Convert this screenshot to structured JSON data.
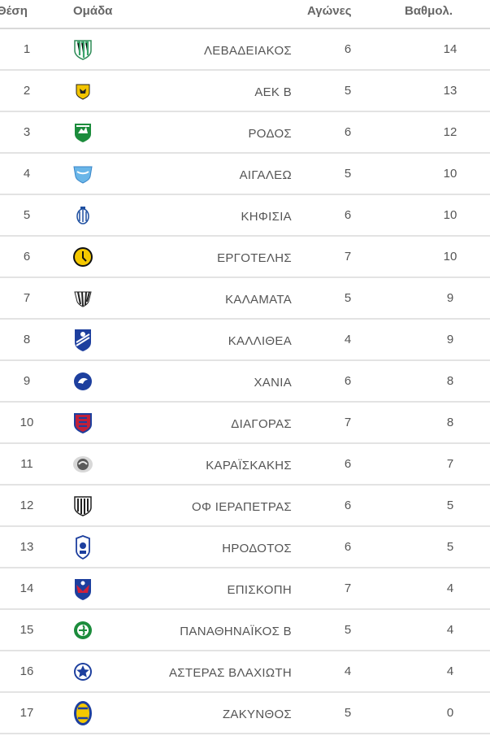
{
  "headers": {
    "position": "Θέση",
    "team": "Ομάδα",
    "games": "Αγώνες",
    "points": "Βαθμολ."
  },
  "rows": [
    {
      "position": "1",
      "team": "ΛΕΒΑΔΕΙΑΚΟΣ",
      "games": "6",
      "points": "14",
      "logo": "levadiakos-crest-icon"
    },
    {
      "position": "2",
      "team": "ΑΕΚ Β",
      "games": "5",
      "points": "13",
      "logo": "aek-crest-icon"
    },
    {
      "position": "3",
      "team": "ΡΟΔΟΣ",
      "games": "6",
      "points": "12",
      "logo": "rodos-crest-icon"
    },
    {
      "position": "4",
      "team": "ΑΙΓΑΛΕΩ",
      "games": "5",
      "points": "10",
      "logo": "aigaleo-crest-icon"
    },
    {
      "position": "5",
      "team": "ΚΗΦΙΣΙΑ",
      "games": "6",
      "points": "10",
      "logo": "kifisia-crest-icon"
    },
    {
      "position": "6",
      "team": "ΕΡΓΟΤΕΛΗΣ",
      "games": "7",
      "points": "10",
      "logo": "ergotelis-crest-icon"
    },
    {
      "position": "7",
      "team": "ΚΑΛΑΜΑΤΑ",
      "games": "5",
      "points": "9",
      "logo": "kalamata-crest-icon"
    },
    {
      "position": "8",
      "team": "ΚΑΛΛΙΘΕΑ",
      "games": "4",
      "points": "9",
      "logo": "kallithea-crest-icon"
    },
    {
      "position": "9",
      "team": "ΧΑΝΙΑ",
      "games": "6",
      "points": "8",
      "logo": "chania-crest-icon"
    },
    {
      "position": "10",
      "team": "ΔΙΑΓΟΡΑΣ",
      "games": "7",
      "points": "8",
      "logo": "diagoras-crest-icon"
    },
    {
      "position": "11",
      "team": "ΚΑΡΑΪΣΚΑΚΗΣ",
      "games": "6",
      "points": "7",
      "logo": "karaiskakis-crest-icon"
    },
    {
      "position": "12",
      "team": "ΟΦ ΙΕΡΑΠΕΤΡΑΣ",
      "games": "6",
      "points": "5",
      "logo": "of-ierapetras-crest-icon"
    },
    {
      "position": "13",
      "team": "ΗΡΟΔΟΤΟΣ",
      "games": "6",
      "points": "5",
      "logo": "irodotos-crest-icon"
    },
    {
      "position": "14",
      "team": "ΕΠΙΣΚΟΠΗ",
      "games": "7",
      "points": "4",
      "logo": "episkopi-crest-icon"
    },
    {
      "position": "15",
      "team": "ΠΑΝΑΘΗΝΑΪΚΟΣ Β",
      "games": "5",
      "points": "4",
      "logo": "panathinaikos-crest-icon"
    },
    {
      "position": "16",
      "team": "ΑΣΤΕΡΑΣ ΒΛΑΧΙΩΤΗ",
      "games": "4",
      "points": "4",
      "logo": "asteras-vlachioti-crest-icon"
    },
    {
      "position": "17",
      "team": "ΖΑΚΥΝΘΟΣ",
      "games": "5",
      "points": "0",
      "logo": "zakynthos-crest-icon"
    }
  ],
  "colors": {
    "header_text": "#666666",
    "row_text": "#555555",
    "divider": "#e3e3e3"
  }
}
